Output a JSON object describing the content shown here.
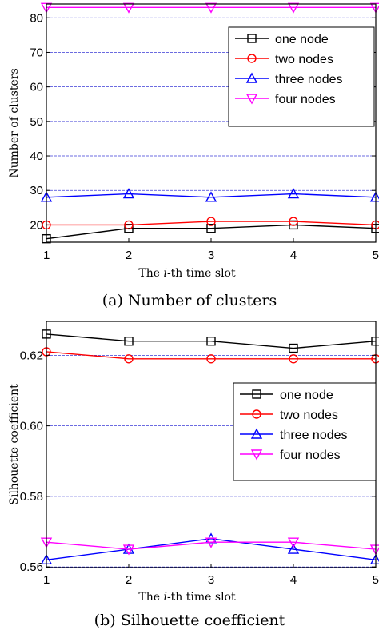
{
  "chart_data": [
    {
      "type": "line",
      "caption": "(a)  Number of clusters",
      "xlabel_prefix": "The ",
      "xlabel_italic": "i",
      "xlabel_suffix": "-th time slot",
      "ylabel": "Number of clusters",
      "x": [
        1,
        2,
        3,
        4,
        5
      ],
      "xlim": [
        1,
        5
      ],
      "ylim": [
        15,
        84
      ],
      "yticks": [
        20,
        30,
        40,
        50,
        60,
        70,
        80
      ],
      "ytick_labels": [
        "20",
        "30",
        "40",
        "50",
        "60",
        "70",
        "80"
      ],
      "xticks": [
        1,
        2,
        3,
        4,
        5
      ],
      "xtick_labels": [
        "1",
        "2",
        "3",
        "4",
        "5"
      ],
      "grid": "horizontal dashed",
      "legend_position": "top-right",
      "series": [
        {
          "name": "one node",
          "values": [
            16,
            19,
            19,
            20,
            19
          ],
          "color": "#000000",
          "marker": "square"
        },
        {
          "name": "two nodes",
          "values": [
            20,
            20,
            21,
            21,
            20
          ],
          "color": "#ff0000",
          "marker": "circle"
        },
        {
          "name": "three nodes",
          "values": [
            28,
            29,
            28,
            29,
            28
          ],
          "color": "#0000ff",
          "marker": "triangle-up"
        },
        {
          "name": "four nodes",
          "values": [
            83,
            83,
            83,
            83,
            83
          ],
          "color": "#ff00ff",
          "marker": "triangle-down"
        }
      ]
    },
    {
      "type": "line",
      "caption": "(b)  Silhouette coefficient",
      "xlabel_prefix": "The ",
      "xlabel_italic": "i",
      "xlabel_suffix": "-th time slot",
      "ylabel": "Silhouette coefficient",
      "x": [
        1,
        2,
        3,
        4,
        5
      ],
      "xlim": [
        1,
        5
      ],
      "ylim": [
        0.5598,
        0.6296
      ],
      "yticks": [
        0.56,
        0.58,
        0.6,
        0.62
      ],
      "ytick_labels": [
        "0.56",
        "0.58",
        "0.60",
        "0.62"
      ],
      "grid_values": [
        0.56,
        0.58,
        0.6,
        0.62
      ],
      "xticks": [
        1,
        2,
        3,
        4,
        5
      ],
      "xtick_labels": [
        "1",
        "2",
        "3",
        "4",
        "5"
      ],
      "grid": "horizontal dashed",
      "legend_position": "center-right",
      "series": [
        {
          "name": "one node",
          "values": [
            0.626,
            0.624,
            0.624,
            0.622,
            0.624
          ],
          "color": "#000000",
          "marker": "square"
        },
        {
          "name": "two nodes",
          "values": [
            0.621,
            0.619,
            0.619,
            0.619,
            0.619
          ],
          "color": "#ff0000",
          "marker": "circle"
        },
        {
          "name": "three nodes",
          "values": [
            0.562,
            0.565,
            0.568,
            0.565,
            0.562
          ],
          "color": "#0000ff",
          "marker": "triangle-up"
        },
        {
          "name": "four nodes",
          "values": [
            0.567,
            0.565,
            0.567,
            0.567,
            0.565
          ],
          "color": "#ff00ff",
          "marker": "triangle-down"
        }
      ]
    }
  ]
}
